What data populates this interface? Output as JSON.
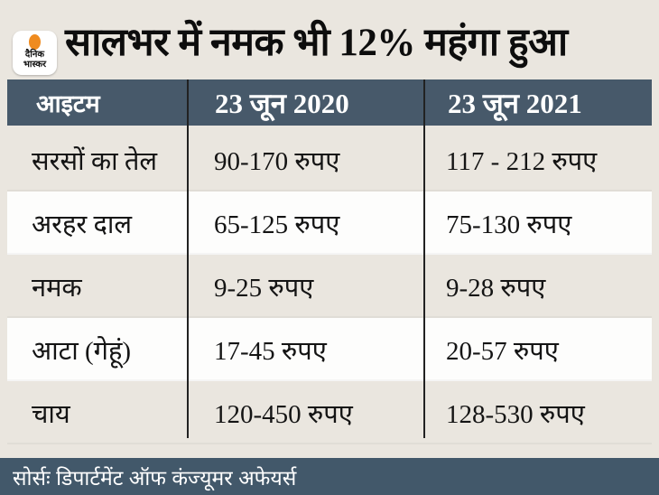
{
  "colors": {
    "bg": "#eae6df",
    "header_bg": "#47596a",
    "footer_bg": "#42586a",
    "row_white": "#fdfdfc",
    "row_beige": "#eae6df",
    "divider": "#222222",
    "text": "#141414",
    "header_text": "#ffffff",
    "logo_orange": "#ef8b1f"
  },
  "brand": {
    "logo_top": "दैनिक",
    "logo_bottom": "भास्कर"
  },
  "chart_data": {
    "type": "table",
    "title": "सालभर में नमक भी 12% महंगा हुआ",
    "columns": [
      "आइटम",
      "23 जून 2020",
      "23 जून 2021"
    ],
    "rows": [
      [
        "सरसों का तेल",
        "90-170 रुपए",
        "117 - 212 रुपए"
      ],
      [
        "अरहर दाल",
        "65-125 रुपए",
        "75-130 रुपए"
      ],
      [
        "नमक",
        "9-25 रुपए",
        "9-28 रुपए"
      ],
      [
        "आटा (गेहूं)",
        "17-45 रुपए",
        "20-57 रुपए"
      ],
      [
        "चाय",
        "120-450 रुपए",
        "128-530 रुपए"
      ]
    ],
    "source": "सोर्सः डिपार्टमेंट ऑफ कंज्यूमर अफेयर्स"
  }
}
